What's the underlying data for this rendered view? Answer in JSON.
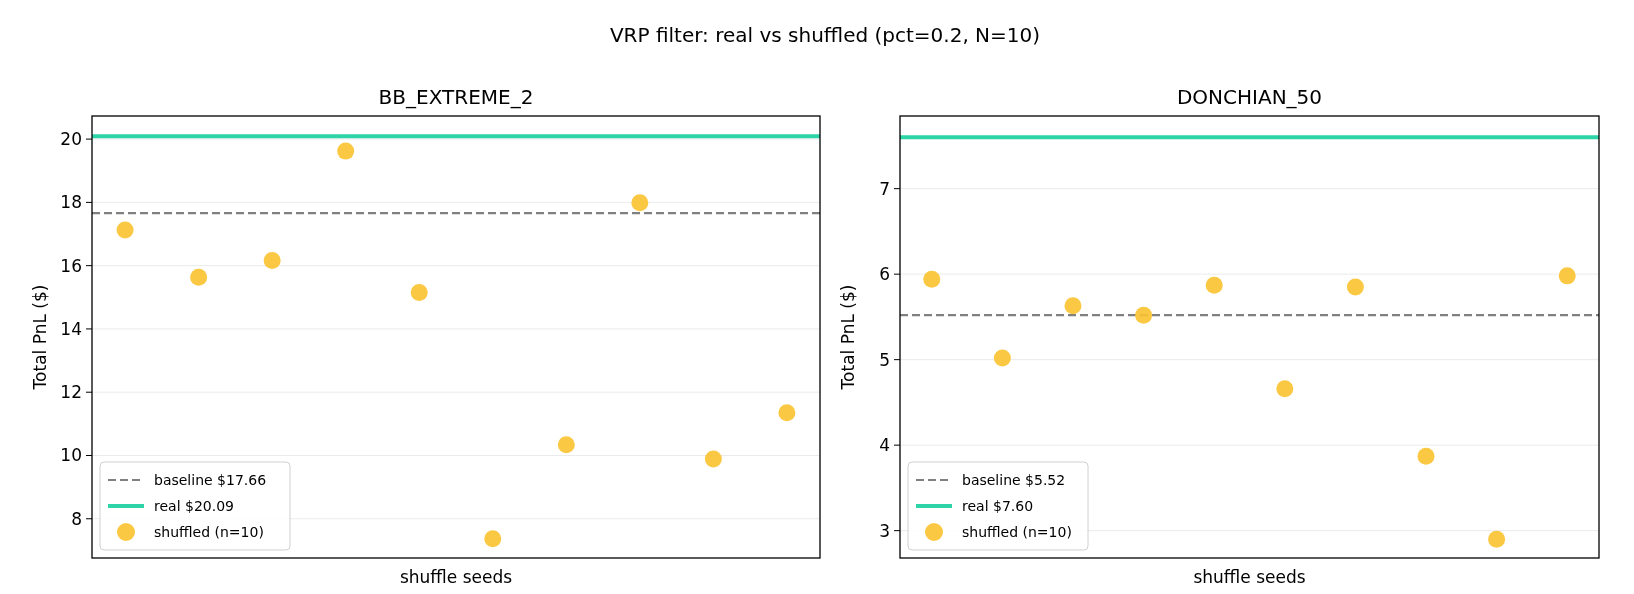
{
  "chart_data": [
    {
      "type": "scatter",
      "title": "BB_EXTREME_2",
      "xlabel": "shuffle seeds",
      "ylabel": "Total PnL ($)",
      "categories": [
        null,
        null,
        null,
        null,
        null,
        null,
        null,
        null,
        null,
        null
      ],
      "series": [
        {
          "name": "shuffled (n=10)",
          "color": "#f9c22e",
          "values": [
            17.13,
            15.63,
            16.16,
            19.62,
            15.15,
            7.37,
            10.34,
            17.99,
            9.89,
            11.35
          ]
        }
      ],
      "ref_lines": [
        {
          "axis": "y",
          "value": 17.66,
          "label": "baseline $17.66",
          "color": "#808080",
          "line_style": "dashed"
        },
        {
          "axis": "y",
          "value": 20.09,
          "label": "real $20.09",
          "color": "#2dd4a7",
          "line_style": "solid"
        }
      ],
      "ylim": [
        6.76,
        20.73
      ],
      "yticks": [
        8,
        10,
        12,
        14,
        16,
        18,
        20
      ],
      "grid": "y",
      "legend": "bottom left",
      "tick_labels": "y",
      "marker": "circle",
      "annotations": [
        "VRP filter: real vs shuffled (pct=0.2, N=10)"
      ]
    },
    {
      "type": "scatter",
      "title": "DONCHIAN_50",
      "xlabel": "shuffle seeds",
      "ylabel": "Total PnL ($)",
      "categories": [
        null,
        null,
        null,
        null,
        null,
        null,
        null,
        null,
        null,
        null
      ],
      "series": [
        {
          "name": "shuffled (n=10)",
          "color": "#f9c22e",
          "values": [
            5.94,
            5.02,
            5.63,
            5.52,
            5.87,
            4.66,
            5.85,
            3.87,
            2.9,
            5.98
          ]
        }
      ],
      "ref_lines": [
        {
          "axis": "y",
          "value": 5.52,
          "label": "baseline $5.52",
          "color": "#808080",
          "line_style": "dashed"
        },
        {
          "axis": "y",
          "value": 7.6,
          "label": "real $7.60",
          "color": "#2dd4a7",
          "line_style": "solid"
        }
      ],
      "ylim": [
        2.68,
        7.85
      ],
      "yticks": [
        3,
        4,
        5,
        6,
        7
      ],
      "grid": "y",
      "legend": "bottom left",
      "tick_labels": "y",
      "marker": "circle"
    }
  ]
}
